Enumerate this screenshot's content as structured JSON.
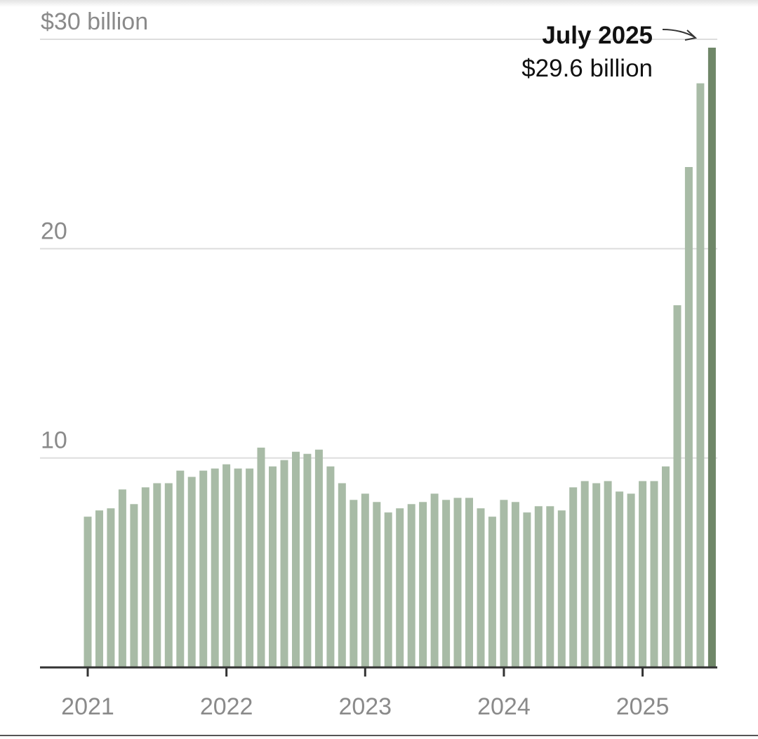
{
  "chart_data": {
    "type": "bar",
    "title": "",
    "xlabel": "",
    "ylabel": "",
    "ylim": [
      0,
      30
    ],
    "grid": true,
    "y_ticks": [
      {
        "value": 10,
        "label": "10"
      },
      {
        "value": 20,
        "label": "20"
      },
      {
        "value": 30,
        "label": "$30 billion"
      }
    ],
    "x_ticks": [
      "2021",
      "2022",
      "2023",
      "2024",
      "2025"
    ],
    "x": [
      "2021-01",
      "2021-02",
      "2021-03",
      "2021-04",
      "2021-05",
      "2021-06",
      "2021-07",
      "2021-08",
      "2021-09",
      "2021-10",
      "2021-11",
      "2021-12",
      "2022-01",
      "2022-02",
      "2022-03",
      "2022-04",
      "2022-05",
      "2022-06",
      "2022-07",
      "2022-08",
      "2022-09",
      "2022-10",
      "2022-11",
      "2022-12",
      "2023-01",
      "2023-02",
      "2023-03",
      "2023-04",
      "2023-05",
      "2023-06",
      "2023-07",
      "2023-08",
      "2023-09",
      "2023-10",
      "2023-11",
      "2023-12",
      "2024-01",
      "2024-02",
      "2024-03",
      "2024-04",
      "2024-05",
      "2024-06",
      "2024-07",
      "2024-08",
      "2024-09",
      "2024-10",
      "2024-11",
      "2024-12",
      "2025-01",
      "2025-02",
      "2025-03",
      "2025-04",
      "2025-05",
      "2025-06",
      "2025-07"
    ],
    "values": [
      7.2,
      7.5,
      7.6,
      8.5,
      7.8,
      8.6,
      8.8,
      8.8,
      9.4,
      9.1,
      9.4,
      9.5,
      9.7,
      9.5,
      9.5,
      10.5,
      9.6,
      9.9,
      10.3,
      10.2,
      10.4,
      9.6,
      8.8,
      8.0,
      8.3,
      7.9,
      7.4,
      7.6,
      7.8,
      7.9,
      8.3,
      8.0,
      8.1,
      8.1,
      7.6,
      7.2,
      8.0,
      7.9,
      7.4,
      7.7,
      7.7,
      7.5,
      8.6,
      8.9,
      8.8,
      8.9,
      8.4,
      8.3,
      8.9,
      8.9,
      9.6,
      17.3,
      23.9,
      27.9,
      29.6
    ],
    "colors": {
      "bar": "#a8bba6",
      "highlight": "#6f8768",
      "axis": "#333333",
      "grid": "#dddddd"
    },
    "highlight_index": 54,
    "annotation": {
      "title": "July 2025",
      "value": "$29.6 billion"
    }
  }
}
